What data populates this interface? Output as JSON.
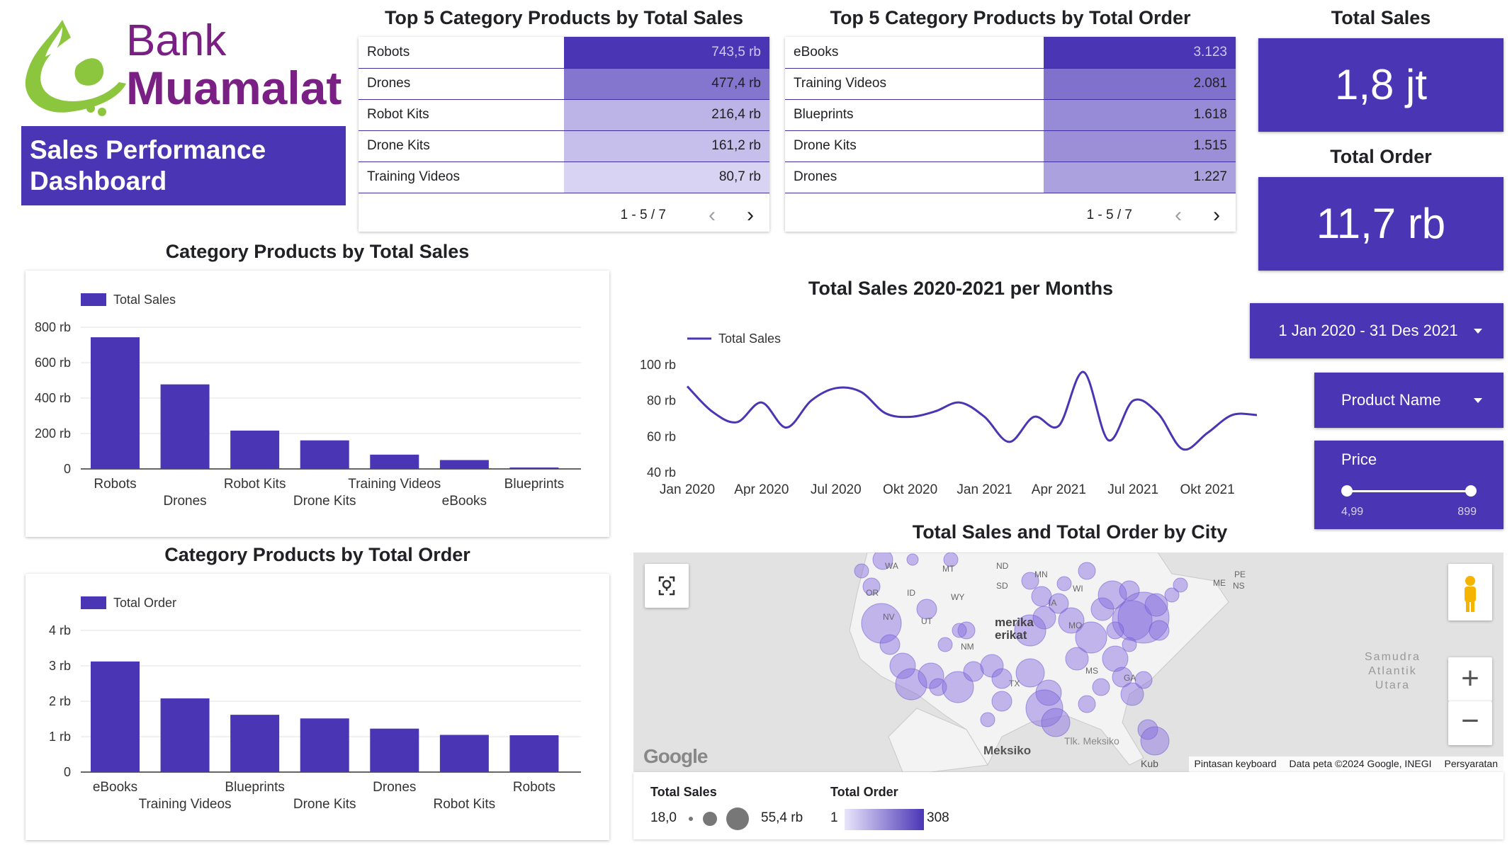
{
  "logo": {
    "line1": "Bank",
    "line2": "Muamalat"
  },
  "dashboard_title": "Sales Performance Dashboard",
  "top_sales_table": {
    "title": "Top 5 Category Products by Total Sales",
    "rows": [
      {
        "name": "Robots",
        "value": "743,5 rb",
        "intensity": 1.0
      },
      {
        "name": "Drones",
        "value": "477,4 rb",
        "intensity": 0.64
      },
      {
        "name": "Robot Kits",
        "value": "216,4 rb",
        "intensity": 0.29
      },
      {
        "name": "Drone Kits",
        "value": "161,2 rb",
        "intensity": 0.22
      },
      {
        "name": "Training Videos",
        "value": "80,7 rb",
        "intensity": 0.11
      }
    ],
    "range": "1 - 5 / 7"
  },
  "top_order_table": {
    "title": "Top 5 Category Products by Total Order",
    "rows": [
      {
        "name": "eBooks",
        "value": "3.123",
        "intensity": 1.0
      },
      {
        "name": "Training Videos",
        "value": "2.081",
        "intensity": 0.66
      },
      {
        "name": "Blueprints",
        "value": "1.618",
        "intensity": 0.52
      },
      {
        "name": "Drone Kits",
        "value": "1.515",
        "intensity": 0.49
      },
      {
        "name": "Drones",
        "value": "1.227",
        "intensity": 0.39
      }
    ],
    "range": "1 - 5 / 7"
  },
  "kpi": {
    "sales_title": "Total Sales",
    "sales_value": "1,8 jt",
    "order_title": "Total Order",
    "order_value": "11,7 rb"
  },
  "filters": {
    "date_range": "1 Jan 2020 - 31 Des 2021",
    "product_name": "Product Name",
    "price_label": "Price",
    "price_min": "4,99",
    "price_max": "899"
  },
  "map": {
    "title": "Total Sales and Total Order by City",
    "labels": {
      "country": "merika\nerikat",
      "mexico": "Meksiko",
      "gulf": "Tlk. Meksiko",
      "ocean": "Samudra\nAtlantik\nUtara",
      "kub": "Kub"
    },
    "states": [
      "WA",
      "MT",
      "ND",
      "MN",
      "OR",
      "ID",
      "SD",
      "WY",
      "WI",
      "NV",
      "UT",
      "IA",
      "NM",
      "MO",
      "TX",
      "MS",
      "GA",
      "ME",
      "PE",
      "NS"
    ],
    "attribution": [
      "Pintasan keyboard",
      "Data peta ©2024 Google, INEGI",
      "Persyaratan"
    ],
    "google": "Google",
    "legend": {
      "sales_title": "Total Sales",
      "sales_min": "18,0",
      "sales_max": "55,4 rb",
      "order_title": "Total Order",
      "order_min": "1",
      "order_max": "308"
    }
  },
  "colors": {
    "primary": "#4a35b5",
    "logo_purple": "#7a1f84",
    "logo_green": "#8cc63f"
  },
  "chart_data": [
    {
      "type": "bar",
      "title": "Category Products by Total Sales",
      "legend": "Total Sales",
      "categories": [
        "Robots",
        "Drones",
        "Robot Kits",
        "Drone Kits",
        "Training Videos",
        "eBooks",
        "Blueprints"
      ],
      "values": [
        743500,
        477400,
        216400,
        161200,
        80700,
        50000,
        8000
      ],
      "ylim": [
        0,
        800000
      ],
      "yticks": [
        0,
        200000,
        400000,
        600000,
        800000
      ],
      "ytick_labels": [
        "0",
        "200 rb",
        "400 rb",
        "600 rb",
        "800 rb"
      ],
      "grid": true,
      "legend_position": "top-left"
    },
    {
      "type": "bar",
      "title": "Category Products by Total Order",
      "legend": "Total Order",
      "categories": [
        "eBooks",
        "Training Videos",
        "Blueprints",
        "Drone Kits",
        "Drones",
        "Robot Kits",
        "Robots"
      ],
      "values": [
        3123,
        2081,
        1618,
        1515,
        1227,
        1050,
        1040
      ],
      "ylim": [
        0,
        4000
      ],
      "yticks": [
        0,
        1000,
        2000,
        3000,
        4000
      ],
      "ytick_labels": [
        "0",
        "1 rb",
        "2 rb",
        "3 rb",
        "4 rb"
      ],
      "grid": true,
      "legend_position": "top-left"
    },
    {
      "type": "line",
      "title": "Total Sales 2020-2021 per Months",
      "legend": "Total Sales",
      "x": [
        "Jan 2020",
        "Feb 2020",
        "Mar 2020",
        "Apr 2020",
        "Mei 2020",
        "Jun 2020",
        "Jul 2020",
        "Agu 2020",
        "Sep 2020",
        "Okt 2020",
        "Nov 2020",
        "Des 2020",
        "Jan 2021",
        "Feb 2021",
        "Mar 2021",
        "Apr 2021",
        "Mei 2021",
        "Jun 2021",
        "Jul 2021",
        "Agu 2021",
        "Sep 2021",
        "Okt 2021",
        "Nov 2021",
        "Des 2021"
      ],
      "values": [
        88000,
        74000,
        68000,
        79000,
        65000,
        80000,
        87000,
        85000,
        73000,
        71000,
        74000,
        79000,
        71000,
        57000,
        71000,
        66000,
        96000,
        58000,
        80000,
        73000,
        53000,
        62000,
        72000,
        72000
      ],
      "ylim": [
        40000,
        100000
      ],
      "yticks": [
        40000,
        60000,
        80000,
        100000
      ],
      "ytick_labels": [
        "40 rb",
        "60 rb",
        "80 rb",
        "100 rb"
      ],
      "xtick_labels": [
        "Jan 2020",
        "Apr 2020",
        "Jul 2020",
        "Okt 2020",
        "Jan 2021",
        "Apr 2021",
        "Jul 2021",
        "Okt 2021"
      ],
      "legend_position": "top-left"
    }
  ]
}
